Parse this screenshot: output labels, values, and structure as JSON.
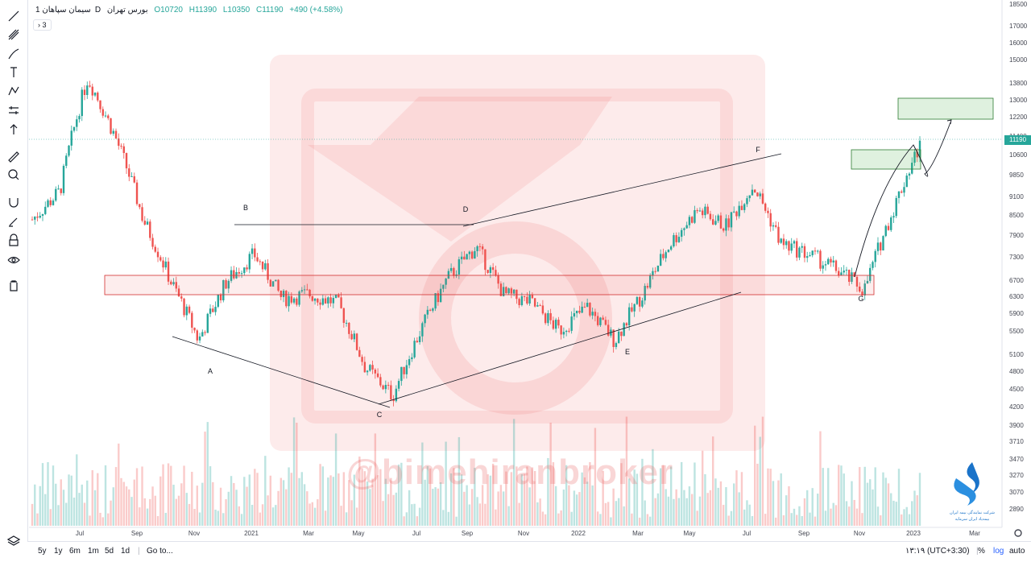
{
  "header": {
    "symbol": "سیمان سپاهان",
    "interval": "1D",
    "exchange": "بورس تهران",
    "open": "O10720",
    "high": "H11390",
    "low": "L10350",
    "close": "C11190",
    "change": "+490 (+4.58%)",
    "indicator_count": "3"
  },
  "toolbar": {
    "icons": [
      "trendline-icon",
      "pitchfork-icon",
      "brush-icon",
      "text-icon",
      "pattern-icon",
      "measure-tools-icon",
      "arrow-up-icon",
      "ruler-icon",
      "zoom-in-icon",
      "magnet-icon",
      "lock-pencil-icon",
      "lock-icon",
      "eye-icon",
      "trash-icon",
      "layers-icon"
    ]
  },
  "bottom_bar": {
    "ranges": [
      "5y",
      "1y",
      "6m",
      "1m",
      "5d",
      "1d"
    ],
    "goto": "Go to...",
    "time": "۱۳:۱۹ (UTC+3:30)",
    "percent": "%",
    "log": "log",
    "auto": "auto"
  },
  "watermark": "@bimehiranbroker",
  "logo_text_1": "شرکت نمایندگی بیمه ایران",
  "logo_text_2": "بیمه‌یاد ایران سرمایه",
  "last_price": "11190",
  "colors": {
    "up": "#26a69a",
    "down": "#ef5350",
    "zone_red": "#d32f2f",
    "zone_green": "#2e7d32"
  },
  "chart_data": {
    "type": "candlestick",
    "title": "",
    "y_axis_labels": [
      "18500",
      "17000",
      "16000",
      "15000",
      "13800",
      "13000",
      "12200",
      "11400",
      "10600",
      "9850",
      "9100",
      "8500",
      "7900",
      "7300",
      "6700",
      "6300",
      "5900",
      "5500",
      "5100",
      "4800",
      "4500",
      "4200",
      "3900",
      "3710",
      "3470",
      "3270",
      "3070",
      "2890"
    ],
    "x_axis_labels": [
      "Jul",
      "Sep",
      "Nov",
      "2021",
      "Mar",
      "May",
      "Jul",
      "Sep",
      "Nov",
      "2022",
      "Mar",
      "May",
      "Jul",
      "Sep",
      "Nov",
      "2023",
      "Mar"
    ],
    "pattern_points": [
      "A",
      "B",
      "C",
      "D",
      "E",
      "F",
      "G"
    ],
    "approx_close_path": [
      [
        "2020-05",
        8600
      ],
      [
        "2020-06",
        9500
      ],
      [
        "2020-07",
        14200
      ],
      [
        "2020-08",
        11500
      ],
      [
        "2020-09",
        8600
      ],
      [
        "2020-10",
        6900
      ],
      [
        "2020-11",
        5600
      ],
      [
        "2020-12",
        6900
      ],
      [
        "2021-01",
        7600
      ],
      [
        "2021-02",
        6500
      ],
      [
        "2021-03",
        6600
      ],
      [
        "2021-04",
        6400
      ],
      [
        "2021-05",
        5100
      ],
      [
        "2021-06",
        4600
      ],
      [
        "2021-07",
        5800
      ],
      [
        "2021-08",
        7000
      ],
      [
        "2021-09",
        7800
      ],
      [
        "2021-10",
        6600
      ],
      [
        "2021-11",
        6400
      ],
      [
        "2021-12",
        5800
      ],
      [
        "2022-01",
        6300
      ],
      [
        "2022-02",
        5600
      ],
      [
        "2022-03",
        6600
      ],
      [
        "2022-04",
        7900
      ],
      [
        "2022-05",
        8900
      ],
      [
        "2022-06",
        8400
      ],
      [
        "2022-07",
        9700
      ],
      [
        "2022-08",
        7900
      ],
      [
        "2022-09",
        7600
      ],
      [
        "2022-10",
        7200
      ],
      [
        "2022-11",
        6700
      ],
      [
        "2022-12",
        8800
      ],
      [
        "2023-01",
        11190
      ]
    ],
    "last_ohlc": {
      "open": 10720,
      "high": 11390,
      "low": 10350,
      "close": 11190
    }
  }
}
